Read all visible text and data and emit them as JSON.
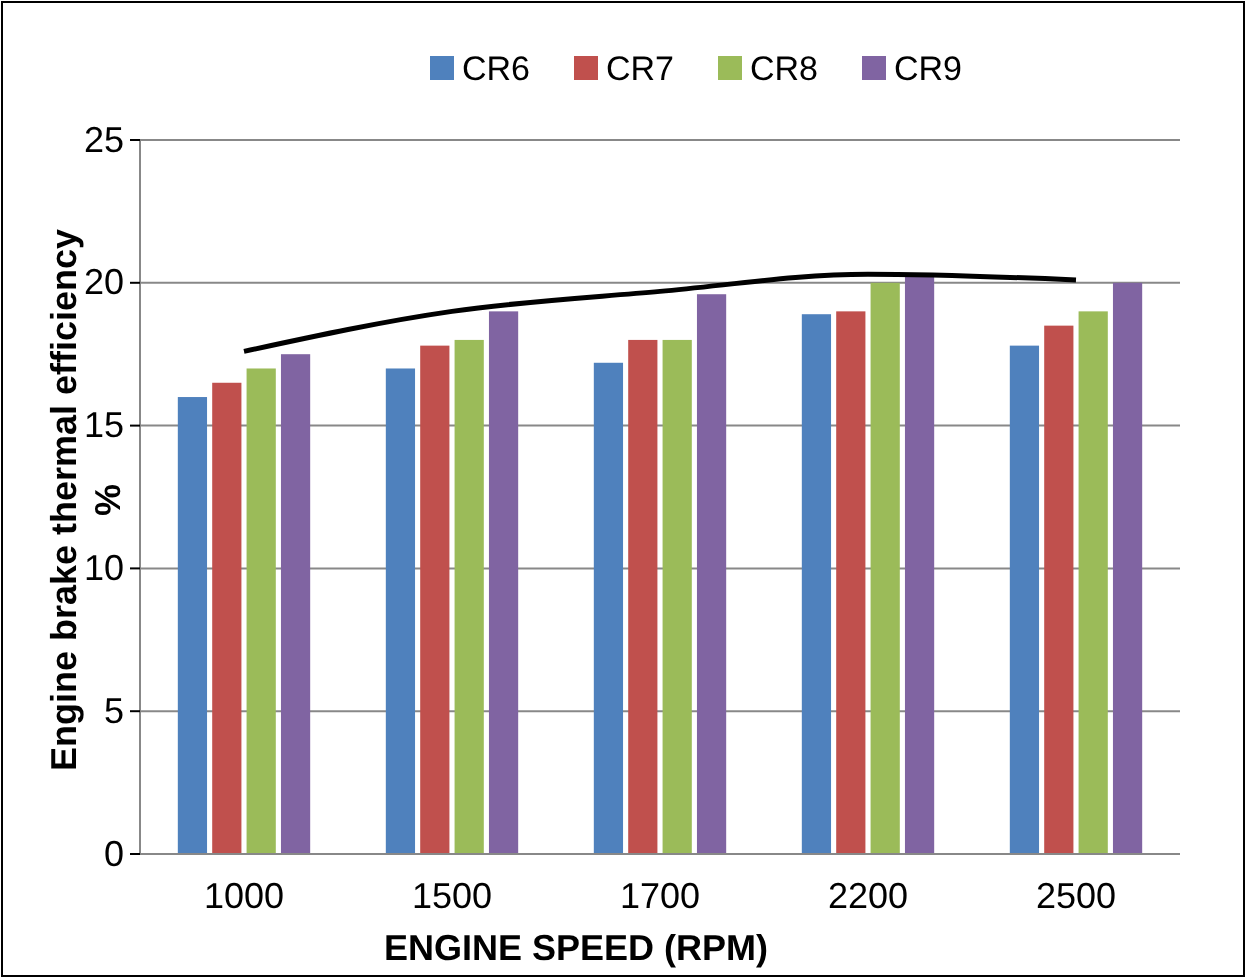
{
  "chart_data": {
    "type": "bar",
    "xlabel": "ENGINE SPEED (RPM)",
    "ylabel": "Engine brake thermal efficiency %",
    "categories": [
      "1000",
      "1500",
      "1700",
      "2200",
      "2500"
    ],
    "series": [
      {
        "name": "CR6",
        "color": "#4f81bd",
        "values": [
          16,
          17,
          17.2,
          18.9,
          17.8
        ]
      },
      {
        "name": "CR7",
        "color": "#c0504d",
        "values": [
          16.5,
          17.8,
          18,
          19,
          18.5
        ]
      },
      {
        "name": "CR8",
        "color": "#9bbb59",
        "values": [
          17,
          18,
          18,
          20,
          19
        ]
      },
      {
        "name": "CR9",
        "color": "#8064a2",
        "values": [
          17.5,
          19,
          19.6,
          20.3,
          20
        ]
      },
      {
        "type": "line",
        "color": "#000000",
        "values": [
          17.6,
          19,
          19.7,
          20.3,
          20.1
        ]
      }
    ],
    "ylim": [
      0,
      25
    ],
    "yticks": [
      0,
      5,
      10,
      15,
      20,
      25
    ],
    "grid": "y",
    "legend": "top"
  }
}
